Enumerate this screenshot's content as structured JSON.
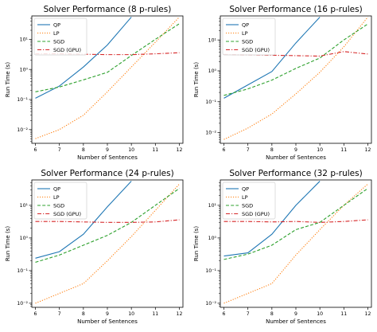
{
  "chart_data": [
    {
      "type": "line",
      "title": "Solver Performance (8 p-rules)",
      "xlabel": "Number of Sentences",
      "ylabel": "Run Time (s)",
      "xlim": [
        5.85,
        12.15
      ],
      "xticks": [
        6,
        7,
        8,
        9,
        10,
        11,
        12
      ],
      "yscale": "log",
      "ylim": [
        0.0035,
        60
      ],
      "yticks": [
        {
          "value": 0.01,
          "label": "10⁻²"
        },
        {
          "value": 0.1,
          "label": "10⁻¹"
        },
        {
          "value": 1,
          "label": "10⁰"
        },
        {
          "value": 10,
          "label": "10¹"
        }
      ],
      "legend_position": "top-left",
      "series": [
        {
          "name": "QP",
          "color": "#1f77b4",
          "style": "solid",
          "x": [
            6,
            7,
            8,
            9,
            10
          ],
          "y": [
            0.11,
            0.28,
            1.2,
            6.5,
            55
          ]
        },
        {
          "name": "LP",
          "color": "#ff7f0e",
          "style": "dotted",
          "x": [
            6,
            7,
            8,
            9,
            10,
            11,
            12
          ],
          "y": [
            0.005,
            0.01,
            0.03,
            0.18,
            1.2,
            8,
            55
          ]
        },
        {
          "name": "SGD",
          "color": "#2ca02c",
          "style": "dashed",
          "x": [
            6,
            7,
            8,
            9,
            10,
            11,
            12
          ],
          "y": [
            0.18,
            0.26,
            0.45,
            0.8,
            2.9,
            10,
            33
          ]
        },
        {
          "name": "SGD (GPU)",
          "color": "#d62728",
          "style": "dashdot",
          "x": [
            6,
            7,
            8,
            9,
            10,
            11,
            12
          ],
          "y": [
            3.3,
            3.3,
            3.2,
            3.1,
            3.1,
            3.3,
            3.6
          ]
        }
      ]
    },
    {
      "type": "line",
      "title": "Solver Performance (16 p-rules)",
      "xlabel": "Number of Sentences",
      "ylabel": "Run Time (s)",
      "xlim": [
        5.85,
        12.15
      ],
      "xticks": [
        6,
        7,
        8,
        9,
        10,
        11,
        12
      ],
      "yscale": "log",
      "ylim": [
        0.0045,
        60
      ],
      "yticks": [
        {
          "value": 0.01,
          "label": "10⁻²"
        },
        {
          "value": 0.1,
          "label": "10⁻¹"
        },
        {
          "value": 1,
          "label": "10⁰"
        },
        {
          "value": 10,
          "label": "10¹"
        }
      ],
      "legend_position": "top-left",
      "series": [
        {
          "name": "QP",
          "color": "#1f77b4",
          "style": "solid",
          "x": [
            6,
            7,
            8,
            9,
            10
          ],
          "y": [
            0.13,
            0.35,
            0.95,
            8,
            55
          ]
        },
        {
          "name": "LP",
          "color": "#ff7f0e",
          "style": "dotted",
          "x": [
            6,
            7,
            8,
            9,
            10,
            11,
            12
          ],
          "y": [
            0.006,
            0.014,
            0.04,
            0.18,
            0.9,
            6,
            55
          ]
        },
        {
          "name": "SGD",
          "color": "#2ca02c",
          "style": "dashed",
          "x": [
            6,
            7,
            8,
            9,
            10,
            11,
            12
          ],
          "y": [
            0.16,
            0.26,
            0.5,
            1.2,
            2.6,
            10,
            33
          ]
        },
        {
          "name": "SGD (GPU)",
          "color": "#d62728",
          "style": "dashdot",
          "x": [
            6,
            7,
            8,
            9,
            10,
            11,
            12
          ],
          "y": [
            3.4,
            3.3,
            3.2,
            3.1,
            3.0,
            4.2,
            3.5
          ]
        }
      ]
    },
    {
      "type": "line",
      "title": "Solver Performance (24 p-rules)",
      "xlabel": "Number of Sentences",
      "ylabel": "Run Time (s)",
      "xlim": [
        5.85,
        12.15
      ],
      "xticks": [
        6,
        7,
        8,
        9,
        10,
        11,
        12
      ],
      "yscale": "log",
      "ylim": [
        0.0075,
        60
      ],
      "yticks": [
        {
          "value": 0.01,
          "label": "10⁻²"
        },
        {
          "value": 0.1,
          "label": "10⁻¹"
        },
        {
          "value": 1,
          "label": "10⁰"
        },
        {
          "value": 10,
          "label": "10¹"
        }
      ],
      "legend_position": "top-left",
      "series": [
        {
          "name": "QP",
          "color": "#1f77b4",
          "style": "solid",
          "x": [
            6,
            7,
            8,
            9,
            10
          ],
          "y": [
            0.24,
            0.38,
            1.3,
            9,
            55
          ]
        },
        {
          "name": "LP",
          "color": "#ff7f0e",
          "style": "dotted",
          "x": [
            6,
            7,
            8,
            9,
            10,
            11,
            12
          ],
          "y": [
            0.01,
            0.02,
            0.04,
            0.2,
            1.1,
            7,
            45
          ]
        },
        {
          "name": "SGD",
          "color": "#2ca02c",
          "style": "dashed",
          "x": [
            6,
            7,
            8,
            9,
            10,
            11,
            12
          ],
          "y": [
            0.18,
            0.3,
            0.6,
            1.2,
            3.0,
            10,
            33
          ]
        },
        {
          "name": "SGD (GPU)",
          "color": "#d62728",
          "style": "dashdot",
          "x": [
            6,
            7,
            8,
            9,
            10,
            11,
            12
          ],
          "y": [
            3.2,
            3.2,
            3.1,
            3.0,
            3.0,
            3.1,
            3.6
          ]
        }
      ]
    },
    {
      "type": "line",
      "title": "Solver Performance (32 p-rules)",
      "xlabel": "Number of Sentences",
      "ylabel": "Run Time (s)",
      "xlim": [
        5.85,
        12.15
      ],
      "xticks": [
        6,
        7,
        8,
        9,
        10,
        11,
        12
      ],
      "yscale": "log",
      "ylim": [
        0.0075,
        60
      ],
      "yticks": [
        {
          "value": 0.01,
          "label": "10⁻²"
        },
        {
          "value": 0.1,
          "label": "10⁻¹"
        },
        {
          "value": 1,
          "label": "10⁰"
        },
        {
          "value": 10,
          "label": "10¹"
        }
      ],
      "legend_position": "top-left",
      "series": [
        {
          "name": "QP",
          "color": "#1f77b4",
          "style": "solid",
          "x": [
            6,
            7,
            8,
            9,
            10
          ],
          "y": [
            0.28,
            0.35,
            1.3,
            10,
            55
          ]
        },
        {
          "name": "LP",
          "color": "#ff7f0e",
          "style": "dotted",
          "x": [
            6,
            7,
            8,
            9,
            10,
            11,
            12
          ],
          "y": [
            0.01,
            0.02,
            0.04,
            0.3,
            1.8,
            10,
            45
          ]
        },
        {
          "name": "SGD",
          "color": "#2ca02c",
          "style": "dashed",
          "x": [
            6,
            7,
            8,
            9,
            10,
            11,
            12
          ],
          "y": [
            0.22,
            0.32,
            0.6,
            1.8,
            3.0,
            10,
            33
          ]
        },
        {
          "name": "SGD (GPU)",
          "color": "#d62728",
          "style": "dashdot",
          "x": [
            6,
            7,
            8,
            9,
            10,
            11,
            12
          ],
          "y": [
            3.2,
            3.2,
            3.1,
            3.2,
            3.0,
            3.2,
            3.6
          ]
        }
      ]
    }
  ]
}
